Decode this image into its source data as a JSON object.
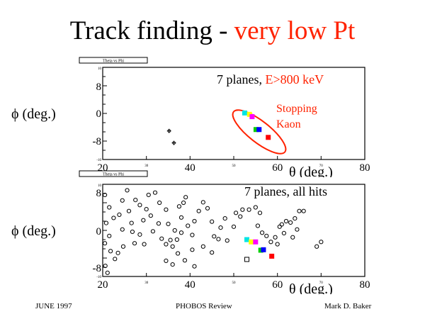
{
  "slide": {
    "title_main": "Track finding - ",
    "title_accent": "very low Pt",
    "accent_color": "#ff2200"
  },
  "plots": [
    {
      "histogram_label": "Theta vs Phi",
      "y_axis_title": "ϕ (deg.)",
      "x_axis_title": "θ (deg.)",
      "x_ticks_large": [
        "20",
        "40",
        "60",
        "80"
      ],
      "x_ticks_small": [
        "30",
        "50",
        "70"
      ],
      "y_ticks_large": [
        "8",
        "0",
        "-8"
      ],
      "y_ticks_small": [
        "10",
        "-10"
      ],
      "annotation_text": "7 planes, ",
      "annotation_accent": "E>800 keV",
      "callout_line1": "Stopping",
      "callout_line2": "Kaon"
    },
    {
      "histogram_label": "Theta vs Phi",
      "y_axis_title": "ϕ (deg.)",
      "x_axis_title": "θ (deg.)",
      "x_ticks_large": [
        "20",
        "40",
        "60",
        "80"
      ],
      "x_ticks_small": [
        "30",
        "50",
        "70"
      ],
      "y_ticks_large": [
        "8",
        "0",
        "-8"
      ],
      "y_ticks_small": [
        "10",
        "-10"
      ],
      "annotation_text": "7 planes, all hits"
    }
  ],
  "footer": {
    "date": "JUNE 1997",
    "event": "PHOBOS Review",
    "author": "Mark D. Baker"
  },
  "chart_data": [
    {
      "type": "scatter",
      "xlim": [
        20,
        80
      ],
      "ylim": [
        -10,
        10
      ],
      "series": [
        {
          "marker": "hollow-cross",
          "color": "#000000",
          "points": [
            [
              35.2,
              -3.8
            ],
            [
              36.3,
              -6.4
            ]
          ]
        },
        {
          "marker": "filled-square",
          "color": "#00e5e5",
          "points": [
            [
              52.5,
              0.1
            ]
          ]
        },
        {
          "marker": "filled-square",
          "color": "#ffff00",
          "points": [
            [
              53.6,
              -0.2
            ]
          ]
        },
        {
          "marker": "filled-square",
          "color": "#ff00ff",
          "points": [
            [
              54.2,
              -0.7
            ]
          ]
        },
        {
          "marker": "filled-square",
          "color": "#00cc00",
          "points": [
            [
              55.1,
              -3.5
            ]
          ]
        },
        {
          "marker": "filled-square",
          "color": "#0000ff",
          "points": [
            [
              55.8,
              -3.5
            ]
          ]
        },
        {
          "marker": "filled-square",
          "color": "#ff0000",
          "points": [
            [
              57.9,
              -5.2
            ]
          ]
        }
      ]
    },
    {
      "type": "scatter",
      "xlim": [
        20,
        80
      ],
      "ylim": [
        -10,
        10
      ],
      "series": [
        {
          "marker": "hollow-circle",
          "color": "#000000",
          "points": [
            [
              20.5,
              7.7
            ],
            [
              21.5,
              5.0
            ],
            [
              22.5,
              2.7
            ],
            [
              20.8,
              1.6
            ],
            [
              21.5,
              -1.2
            ],
            [
              20.5,
              -2.8
            ],
            [
              21.8,
              -4.5
            ],
            [
              22.8,
              -6.2
            ],
            [
              20.6,
              -7.7
            ],
            [
              21.1,
              -9.2
            ],
            [
              24.5,
              6.5
            ],
            [
              23.8,
              3.4
            ],
            [
              24.5,
              0.2
            ],
            [
              24.7,
              -3.5
            ],
            [
              23.5,
              -4.9
            ],
            [
              25.6,
              8.7
            ],
            [
              26.0,
              4.2
            ],
            [
              26.6,
              1.6
            ],
            [
              26.8,
              -0.3
            ],
            [
              27.3,
              -2.8
            ],
            [
              27.5,
              6.6
            ],
            [
              28.5,
              5.5
            ],
            [
              29.3,
              2.2
            ],
            [
              28.5,
              -0.9
            ],
            [
              29.5,
              -3.0
            ],
            [
              30.5,
              7.7
            ],
            [
              30.0,
              4.6
            ],
            [
              31.0,
              3.2
            ],
            [
              32.8,
              1.5
            ],
            [
              31.5,
              -0.2
            ],
            [
              33.5,
              -1.8
            ],
            [
              32.0,
              8.2
            ],
            [
              33.0,
              6.0
            ],
            [
              34.5,
              4.5
            ],
            [
              35.0,
              1.4
            ],
            [
              36.5,
              0.0
            ],
            [
              35.5,
              -2.1
            ],
            [
              34.5,
              -3.0
            ],
            [
              36.0,
              -3.5
            ],
            [
              37.0,
              -2.0
            ],
            [
              38.0,
              -0.5
            ],
            [
              38.0,
              2.8
            ],
            [
              37.5,
              5.2
            ],
            [
              39.0,
              7.2
            ],
            [
              38.5,
              6.0
            ],
            [
              39.5,
              1.0
            ],
            [
              40.5,
              -1.0
            ],
            [
              41.0,
              2.0
            ],
            [
              42.0,
              4.2
            ],
            [
              43.0,
              6.1
            ],
            [
              44.0,
              4.8
            ],
            [
              45.0,
              1.9
            ],
            [
              45.5,
              -1.3
            ],
            [
              46.5,
              -1.9
            ],
            [
              47.0,
              0.6
            ],
            [
              48.0,
              2.6
            ],
            [
              34.5,
              -6.6
            ],
            [
              36.0,
              -7.4
            ],
            [
              37.2,
              -5.0
            ],
            [
              38.8,
              -6.5
            ],
            [
              40.5,
              -4.2
            ],
            [
              41.0,
              -7.8
            ],
            [
              43.0,
              -3.5
            ],
            [
              45.0,
              -4.8
            ],
            [
              48.5,
              -2.2
            ],
            [
              50.0,
              0.8
            ],
            [
              51.5,
              3.0
            ],
            [
              50.5,
              3.8
            ],
            [
              52.0,
              4.5
            ],
            [
              53.5,
              4.5
            ],
            [
              55.0,
              5.0
            ],
            [
              56.0,
              3.8
            ],
            [
              55.5,
              1.0
            ],
            [
              56.5,
              -0.5
            ],
            [
              57.5,
              -1.2
            ],
            [
              58.5,
              -2.5
            ],
            [
              59.5,
              -1.5
            ],
            [
              60.0,
              -3.0
            ],
            [
              61.0,
              1.3
            ],
            [
              62.0,
              2.0
            ],
            [
              63.0,
              1.7
            ],
            [
              64.0,
              2.6
            ],
            [
              65.0,
              4.2
            ],
            [
              66.0,
              4.2
            ],
            [
              63.5,
              -1.5
            ],
            [
              64.5,
              0.2
            ],
            [
              60.5,
              0.8
            ],
            [
              61.5,
              -0.6
            ],
            [
              69.0,
              -3.5
            ],
            [
              70.0,
              -2.5
            ]
          ]
        },
        {
          "marker": "hollow-square",
          "color": "#000000",
          "points": [
            [
              53.0,
              -6.3
            ]
          ]
        },
        {
          "marker": "filled-square",
          "color": "#00e5e5",
          "points": [
            [
              53.0,
              -2.0
            ]
          ]
        },
        {
          "marker": "filled-square",
          "color": "#ffff00",
          "points": [
            [
              54.0,
              -2.5
            ]
          ]
        },
        {
          "marker": "filled-square",
          "color": "#ff00ff",
          "points": [
            [
              55.0,
              -2.5
            ]
          ]
        },
        {
          "marker": "filled-square",
          "color": "#00cc00",
          "points": [
            [
              56.2,
              -4.3
            ]
          ]
        },
        {
          "marker": "filled-square",
          "color": "#0000ff",
          "points": [
            [
              56.8,
              -4.2
            ]
          ]
        },
        {
          "marker": "filled-square",
          "color": "#ff0000",
          "points": [
            [
              58.7,
              -5.6
            ]
          ]
        }
      ]
    }
  ]
}
